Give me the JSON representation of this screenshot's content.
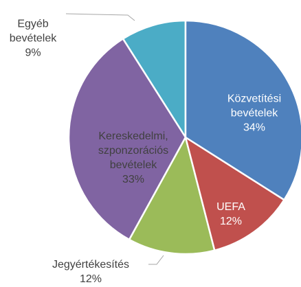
{
  "chart_data": {
    "type": "pie",
    "categories": [
      "Közvetítési bevételek",
      "UEFA",
      "Jegyértékesítés",
      "Kereskedelmi, szponzorációs bevételek",
      "Egyéb bevételek"
    ],
    "values": [
      34,
      12,
      12,
      33,
      9
    ],
    "value_labels": [
      "34%",
      "12%",
      "12%",
      "33%",
      "9%"
    ],
    "colors": [
      "#4f81bd",
      "#c0504d",
      "#9bbb59",
      "#8064a2",
      "#4bacc6"
    ]
  }
}
